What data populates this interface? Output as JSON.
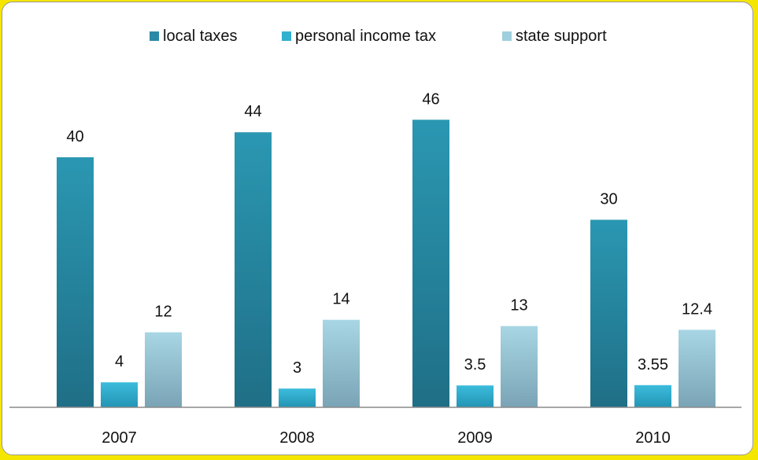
{
  "chart_data": {
    "type": "bar",
    "categories": [
      "2007",
      "2008",
      "2009",
      "2010"
    ],
    "series": [
      {
        "name": "local taxes",
        "values": [
          40,
          44,
          46,
          30
        ],
        "labels": [
          "40",
          "44",
          "46",
          "30"
        ]
      },
      {
        "name": "personal income tax",
        "values": [
          4,
          3,
          3.5,
          3.55
        ],
        "labels": [
          "4",
          "3",
          "3.5",
          "3.55"
        ]
      },
      {
        "name": "state support",
        "values": [
          12,
          14,
          13,
          12.4
        ],
        "labels": [
          "12",
          "14",
          "13",
          "12.4"
        ]
      }
    ],
    "title": "",
    "xlabel": "",
    "ylabel": "",
    "ylim": [
      0,
      70
    ],
    "grid": false,
    "legend": "top-center",
    "colors": [
      "#2a93ad",
      "#31b0d0",
      "#9fd0de"
    ]
  }
}
